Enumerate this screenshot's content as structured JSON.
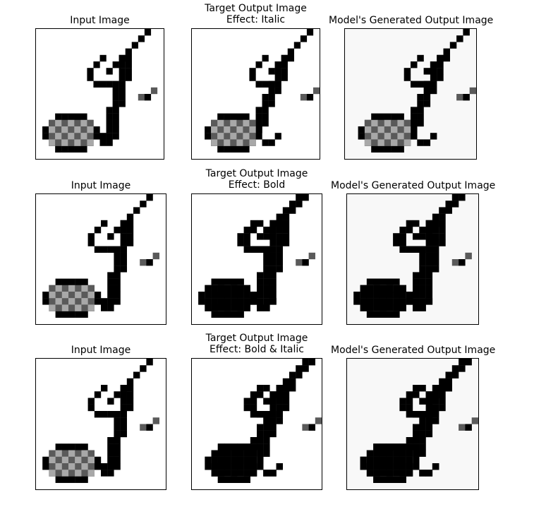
{
  "rows": [
    {
      "panels": [
        {
          "title_lines": [
            "Input Image"
          ]
        },
        {
          "title_lines": [
            "Target Output Image",
            "Effect: Italic"
          ]
        },
        {
          "title_lines": [
            "Model's Generated Output Image"
          ]
        }
      ]
    },
    {
      "panels": [
        {
          "title_lines": [
            "Input Image"
          ]
        },
        {
          "title_lines": [
            "Target Output Image",
            "Effect: Bold"
          ]
        },
        {
          "title_lines": [
            "Model's Generated Output Image"
          ]
        }
      ]
    },
    {
      "panels": [
        {
          "title_lines": [
            "Input Image"
          ]
        },
        {
          "title_lines": [
            "Target Output Image",
            "Effect: Bold & Italic"
          ]
        },
        {
          "title_lines": [
            "Model's Generated Output Image"
          ]
        }
      ]
    }
  ],
  "colors": {
    "stroke_dark": "#000000",
    "stroke_mid": "#5a5a5a",
    "stroke_light": "#a8a8a8",
    "background": "#ffffff",
    "generated_haze": "#ececec"
  }
}
